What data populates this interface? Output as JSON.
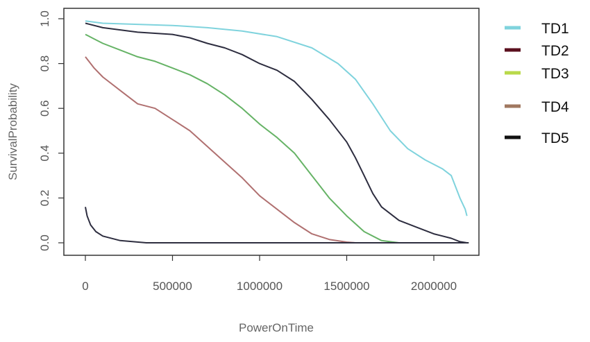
{
  "chart_data": {
    "type": "line",
    "title": "",
    "xlabel": "PowerOnTime",
    "ylabel": "SurvivalProbability",
    "xlim": [
      0,
      2200000
    ],
    "ylim": [
      0,
      1
    ],
    "xticks": [
      {
        "value": 0,
        "label": "0"
      },
      {
        "value": 500000,
        "label": "500000"
      },
      {
        "value": 1000000,
        "label": "1000000"
      },
      {
        "value": 1500000,
        "label": "1500000"
      },
      {
        "value": 2000000,
        "label": "2000000"
      }
    ],
    "yticks": [
      {
        "value": 0,
        "label": "0.0"
      },
      {
        "value": 0.2,
        "label": "0.2"
      },
      {
        "value": 0.4,
        "label": "0.4"
      },
      {
        "value": 0.6,
        "label": "0.6"
      },
      {
        "value": 0.8,
        "label": "0.8"
      },
      {
        "value": 1.0,
        "label": "1.0"
      }
    ],
    "grid": false,
    "legend_position": "right",
    "series": [
      {
        "name": "TD1",
        "color": "#7fd3dd",
        "points": [
          [
            0,
            0.99
          ],
          [
            100000,
            0.98
          ],
          [
            300000,
            0.975
          ],
          [
            500000,
            0.97
          ],
          [
            700000,
            0.96
          ],
          [
            900000,
            0.945
          ],
          [
            1100000,
            0.92
          ],
          [
            1300000,
            0.87
          ],
          [
            1450000,
            0.8
          ],
          [
            1550000,
            0.73
          ],
          [
            1650000,
            0.62
          ],
          [
            1750000,
            0.5
          ],
          [
            1850000,
            0.42
          ],
          [
            1950000,
            0.37
          ],
          [
            2050000,
            0.33
          ],
          [
            2100000,
            0.3
          ],
          [
            2150000,
            0.2
          ],
          [
            2180000,
            0.15
          ],
          [
            2190000,
            0.12
          ]
        ]
      },
      {
        "name": "TD2",
        "color": "#b07070",
        "points": [
          [
            0,
            0.83
          ],
          [
            50000,
            0.78
          ],
          [
            100000,
            0.74
          ],
          [
            200000,
            0.68
          ],
          [
            300000,
            0.62
          ],
          [
            400000,
            0.6
          ],
          [
            500000,
            0.55
          ],
          [
            600000,
            0.5
          ],
          [
            700000,
            0.43
          ],
          [
            800000,
            0.36
          ],
          [
            900000,
            0.29
          ],
          [
            1000000,
            0.21
          ],
          [
            1100000,
            0.15
          ],
          [
            1200000,
            0.09
          ],
          [
            1300000,
            0.04
          ],
          [
            1400000,
            0.015
          ],
          [
            1500000,
            0.003
          ],
          [
            1550000,
            0.0
          ]
        ]
      },
      {
        "name": "TD3",
        "color": "#66b366",
        "points": [
          [
            0,
            0.93
          ],
          [
            50000,
            0.91
          ],
          [
            100000,
            0.89
          ],
          [
            200000,
            0.86
          ],
          [
            300000,
            0.83
          ],
          [
            400000,
            0.81
          ],
          [
            500000,
            0.78
          ],
          [
            600000,
            0.75
          ],
          [
            700000,
            0.71
          ],
          [
            800000,
            0.66
          ],
          [
            900000,
            0.6
          ],
          [
            1000000,
            0.53
          ],
          [
            1100000,
            0.47
          ],
          [
            1200000,
            0.4
          ],
          [
            1300000,
            0.3
          ],
          [
            1400000,
            0.2
          ],
          [
            1500000,
            0.12
          ],
          [
            1600000,
            0.05
          ],
          [
            1700000,
            0.01
          ],
          [
            1800000,
            0.0
          ],
          [
            2200000,
            0.0
          ]
        ]
      },
      {
        "name": "TD4",
        "color": "#9b8a7b",
        "points": [
          [
            2000000,
            0.0
          ],
          [
            2200000,
            0.0
          ]
        ]
      },
      {
        "name": "TD5",
        "color": "#2d2d3f",
        "points": [
          [
            0,
            0.98
          ],
          [
            100000,
            0.96
          ],
          [
            300000,
            0.94
          ],
          [
            500000,
            0.93
          ],
          [
            600000,
            0.915
          ],
          [
            700000,
            0.89
          ],
          [
            800000,
            0.87
          ],
          [
            900000,
            0.84
          ],
          [
            1000000,
            0.8
          ],
          [
            1100000,
            0.77
          ],
          [
            1200000,
            0.72
          ],
          [
            1300000,
            0.64
          ],
          [
            1400000,
            0.55
          ],
          [
            1500000,
            0.45
          ],
          [
            1550000,
            0.38
          ],
          [
            1600000,
            0.3
          ],
          [
            1650000,
            0.22
          ],
          [
            1700000,
            0.16
          ],
          [
            1800000,
            0.1
          ],
          [
            1900000,
            0.07
          ],
          [
            2000000,
            0.04
          ],
          [
            2100000,
            0.02
          ],
          [
            2150000,
            0.005
          ],
          [
            2190000,
            0.0
          ]
        ]
      },
      {
        "name": "",
        "color": "#2d2d3f",
        "points": [
          [
            0,
            0.16
          ],
          [
            10000,
            0.12
          ],
          [
            30000,
            0.08
          ],
          [
            60000,
            0.05
          ],
          [
            100000,
            0.03
          ],
          [
            200000,
            0.01
          ],
          [
            350000,
            0.0
          ],
          [
            2200000,
            0.0
          ]
        ]
      }
    ],
    "legend": [
      {
        "label": "TD1",
        "color": "#7fd3dd"
      },
      {
        "label": "TD2",
        "color": "#5a0f1e"
      },
      {
        "label": "TD3",
        "color": "#b9d94a"
      },
      {
        "label": "TD4",
        "color": "#a07860"
      },
      {
        "label": "TD5",
        "color": "#111111"
      }
    ]
  }
}
